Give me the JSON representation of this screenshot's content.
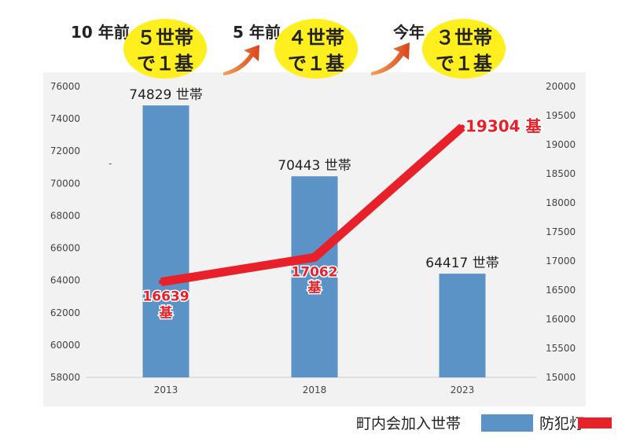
{
  "header": {
    "stages": [
      {
        "label": "10 年前",
        "bubble_line1": "５世帯",
        "bubble_line2": "で１基"
      },
      {
        "label": "5 年前",
        "bubble_line1": "４世帯",
        "bubble_line2": "で１基"
      },
      {
        "label": "今年",
        "bubble_line1": "３世帯",
        "bubble_line2": "で１基"
      }
    ]
  },
  "colors": {
    "bar": "#5b93c7",
    "line": "#e8202a",
    "bubble": "#ffef1f",
    "panel": "#f2f2f2",
    "arrow": "#e96d1c"
  },
  "chart_data": {
    "type": "bar+line",
    "categories": [
      "2013",
      "2018",
      "2023"
    ],
    "series": [
      {
        "name": "町内会加入世帯",
        "type": "bar",
        "axis": "left",
        "values": [
          74829,
          70443,
          64417
        ],
        "labels": [
          "74829 世帯",
          "70443 世帯",
          "64417 世帯"
        ]
      },
      {
        "name": "防犯灯",
        "type": "line",
        "axis": "right",
        "values": [
          16639,
          17062,
          19304
        ],
        "labels": [
          "16639",
          "17062",
          "19304 基"
        ],
        "label_suffix": [
          "基",
          "基",
          ""
        ]
      }
    ],
    "y_left": {
      "min": 58000,
      "max": 76000,
      "ticks": [
        "58000",
        "60000",
        "62000",
        "64000",
        "66000",
        "68000",
        "70000",
        "72000",
        "74000",
        "76000"
      ]
    },
    "y_right": {
      "min": 15000,
      "max": 20000,
      "ticks": [
        "15000",
        "15500",
        "16000",
        "16500",
        "17000",
        "17500",
        "18000",
        "18500",
        "19000",
        "19500",
        "20000"
      ]
    },
    "stray_mark": "-",
    "legend": {
      "placement": "bottom-right"
    }
  }
}
